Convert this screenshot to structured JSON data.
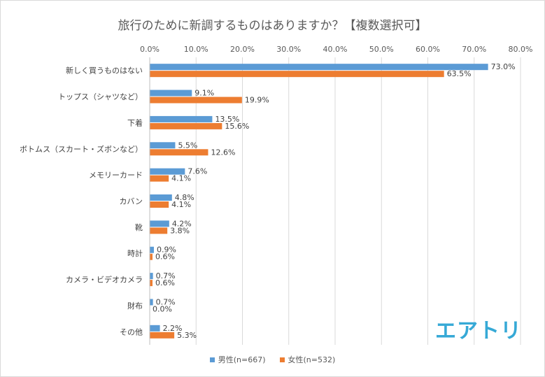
{
  "chart_data": {
    "type": "bar",
    "orientation": "horizontal",
    "title": "旅行のために新調するものはありますか？【複数選択可】",
    "categories": [
      "新しく買うものはない",
      "トップス（シャツなど）",
      "下着",
      "ボトムス（スカート・ズボンなど）",
      "メモリーカード",
      "カバン",
      "靴",
      "時計",
      "カメラ・ビデオカメラ",
      "財布",
      "その他"
    ],
    "series": [
      {
        "name": "男性(n=667)",
        "color": "#5b9bd5",
        "values": [
          73.0,
          9.1,
          13.5,
          5.5,
          7.6,
          4.8,
          4.2,
          0.9,
          0.7,
          0.7,
          2.2
        ]
      },
      {
        "name": "女性(n=532)",
        "color": "#ed7d31",
        "values": [
          63.5,
          19.9,
          15.6,
          12.6,
          4.1,
          4.1,
          3.8,
          0.6,
          0.6,
          0.0,
          5.3
        ]
      }
    ],
    "xlim": [
      0,
      80
    ],
    "xticks": [
      "0.0%",
      "10.0%",
      "20.0%",
      "30.0%",
      "40.0%",
      "50.0%",
      "60.0%",
      "70.0%",
      "80.0%"
    ],
    "grid": true,
    "legend": "bottom"
  },
  "logo_text": "エアトリ"
}
